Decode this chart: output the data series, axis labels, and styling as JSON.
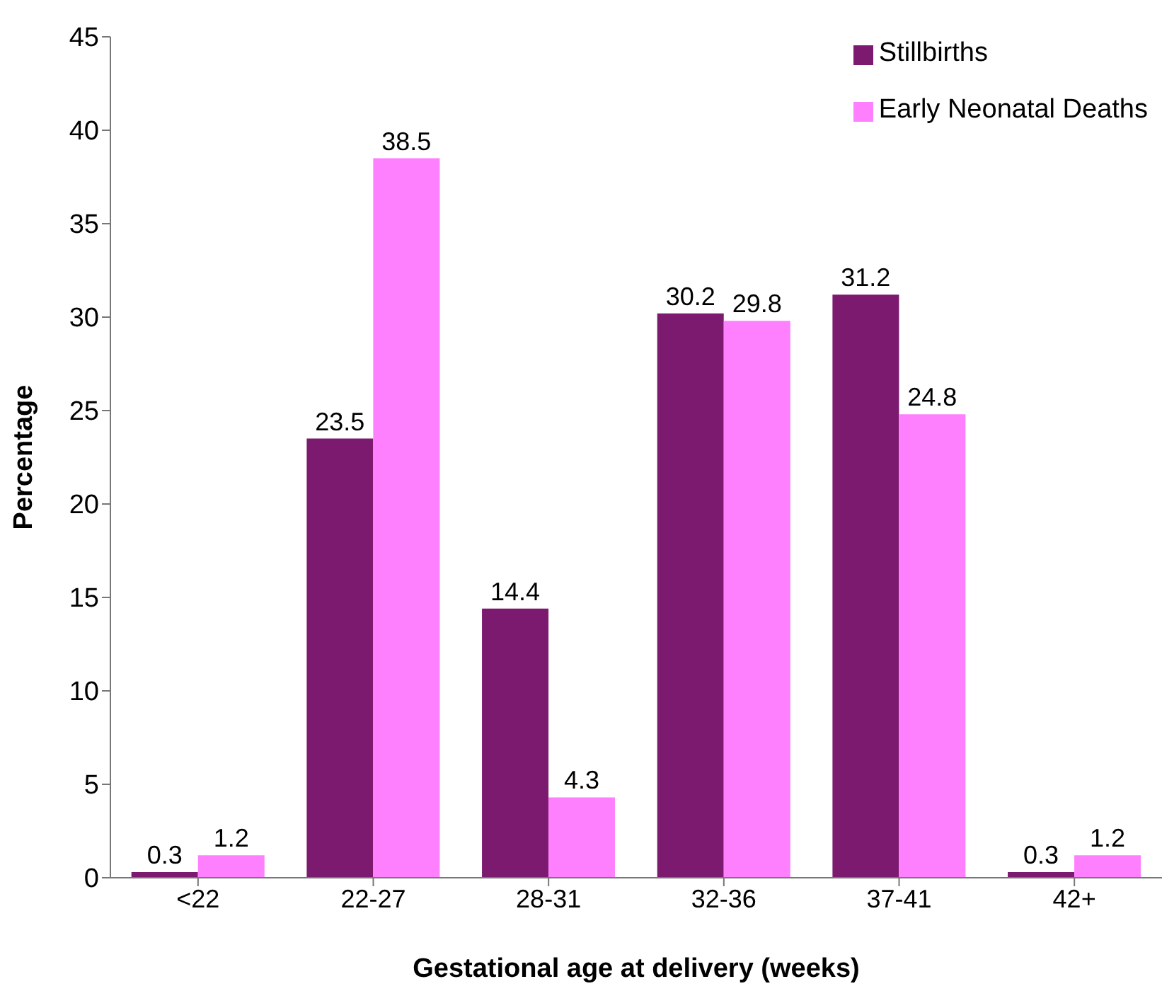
{
  "chart_data": {
    "type": "bar",
    "xlabel": "Gestational age at delivery (weeks)",
    "ylabel": "Percentage",
    "categories": [
      "<22",
      "22-27",
      "28-31",
      "32-36",
      "37-41",
      "42+"
    ],
    "series": [
      {
        "name": "Stillbirths",
        "color": "#7b1a6e",
        "values": [
          0.3,
          23.5,
          14.4,
          30.2,
          31.2,
          0.3
        ]
      },
      {
        "name": "Early Neonatal Deaths",
        "color": "#ff80ff",
        "values": [
          1.2,
          38.5,
          4.3,
          29.8,
          24.8,
          1.2
        ]
      }
    ],
    "ylim": [
      0,
      45
    ],
    "yticks": [
      0,
      5,
      10,
      15,
      20,
      25,
      30,
      35,
      40,
      45
    ],
    "grid": false,
    "legend": "top right",
    "data_labels": true
  }
}
